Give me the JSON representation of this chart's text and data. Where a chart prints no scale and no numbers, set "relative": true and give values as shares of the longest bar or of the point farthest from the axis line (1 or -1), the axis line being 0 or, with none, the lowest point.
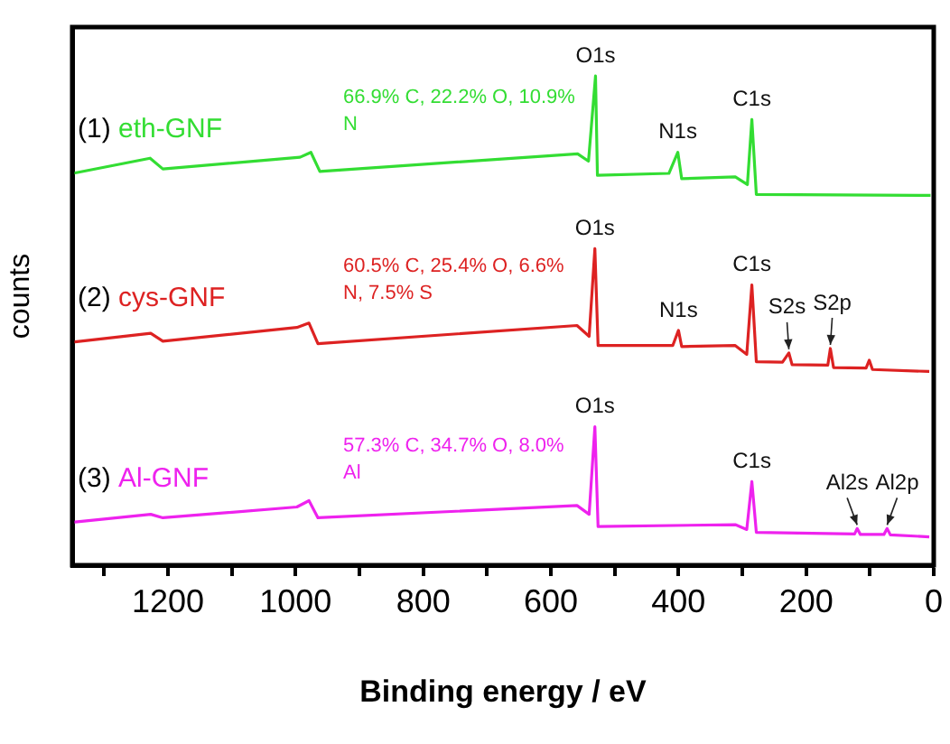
{
  "chart_data": {
    "type": "line",
    "relative": true,
    "xlabel": "Binding energy / eV",
    "ylabel": "counts",
    "legend": false,
    "grid": false,
    "marker": "none",
    "line_style": "solid",
    "xlim": [
      1350,
      0
    ],
    "xticks": [
      {
        "value": 1300,
        "label": null
      },
      1200,
      {
        "value": 1100,
        "label": null
      },
      1000,
      {
        "value": 900,
        "label": null
      },
      800,
      {
        "value": 700,
        "label": null
      },
      600,
      {
        "value": 500,
        "label": null
      },
      400,
      {
        "value": 300,
        "label": null
      },
      200,
      {
        "value": 100,
        "label": null
      },
      0
    ],
    "series": [
      {
        "name": "(1) eth-GNF",
        "color": "#33dd33",
        "x": [
          1349,
          1228,
          1208,
          993,
          976,
          962,
          558,
          541,
          530,
          527,
          415,
          401,
          395,
          311,
          292,
          285,
          278,
          5
        ],
        "values": [
          0.801,
          0.832,
          0.81,
          0.834,
          0.844,
          0.805,
          0.841,
          0.826,
          1.0,
          0.797,
          0.801,
          0.844,
          0.79,
          0.794,
          0.778,
          0.911,
          0.758,
          0.756
        ]
      },
      {
        "name": "(2) cys-GNF",
        "color": "#dd2222",
        "x": [
          1349,
          1227,
          1208,
          998,
          979,
          965,
          559,
          540,
          531,
          526,
          409,
          400,
          395,
          311,
          293,
          285,
          278,
          237,
          227,
          222,
          166,
          162,
          157,
          106,
          101,
          96,
          7
        ],
        "values": [
          0.456,
          0.474,
          0.458,
          0.486,
          0.495,
          0.453,
          0.49,
          0.468,
          0.647,
          0.449,
          0.449,
          0.48,
          0.447,
          0.449,
          0.431,
          0.573,
          0.416,
          0.415,
          0.434,
          0.41,
          0.409,
          0.443,
          0.404,
          0.403,
          0.419,
          0.4,
          0.396
        ]
      },
      {
        "name": "(3) Al-GNF",
        "color": "#ee22ee",
        "x": [
          1349,
          1227,
          1208,
          998,
          979,
          965,
          559,
          540,
          531,
          526,
          311,
          293,
          285,
          278,
          124,
          120,
          115,
          78,
          73,
          68,
          7
        ],
        "values": [
          0.088,
          0.104,
          0.097,
          0.119,
          0.132,
          0.097,
          0.122,
          0.104,
          0.283,
          0.079,
          0.083,
          0.073,
          0.171,
          0.067,
          0.064,
          0.075,
          0.063,
          0.063,
          0.075,
          0.062,
          0.058
        ]
      }
    ],
    "annotations": [
      "66.9% C, 22.2% O, 10.9% N",
      "60.5% C, 25.4% O, 6.6% N, 7.5% S",
      "57.3% C, 34.7% O, 8.0% Al",
      {
        "text": "O1s",
        "x": 530,
        "y": 1.0
      },
      {
        "text": "N1s",
        "x": 401,
        "y": 0.844
      },
      {
        "text": "C1s",
        "x": 285,
        "y": 0.911
      },
      {
        "text": "O1s",
        "x": 531,
        "y": 0.647
      },
      {
        "text": "N1s",
        "x": 400,
        "y": 0.48
      },
      {
        "text": "C1s",
        "x": 285,
        "y": 0.573
      },
      {
        "text": "S2s",
        "x": 227,
        "y": 0.434
      },
      {
        "text": "S2p",
        "x": 162,
        "y": 0.443
      },
      {
        "text": "O1s",
        "x": 531,
        "y": 0.283
      },
      {
        "text": "C1s",
        "x": 285,
        "y": 0.171
      },
      {
        "text": "Al2s",
        "x": 120,
        "y": 0.075
      },
      {
        "text": "Al2p",
        "x": 73,
        "y": 0.075
      }
    ]
  }
}
